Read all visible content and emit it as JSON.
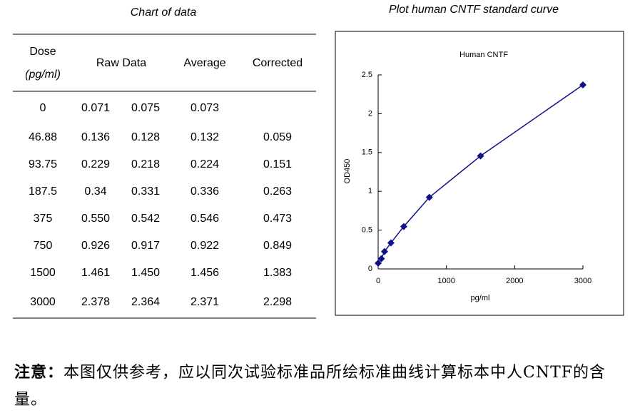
{
  "table": {
    "title": "Chart of data",
    "header": {
      "dose": "Dose",
      "dose_unit": "(pg/ml)",
      "raw": "Raw Data",
      "average": "Average",
      "corrected": "Corrected"
    },
    "rows": [
      [
        "0",
        "0.071",
        "0.075",
        "0.073",
        null
      ],
      [
        "46.88",
        "0.136",
        "0.128",
        "0.132",
        "0.059"
      ],
      [
        "93.75",
        "0.229",
        "0.218",
        "0.224",
        "0.151"
      ],
      [
        "187.5",
        "0.34",
        "0.331",
        "0.336",
        "0.263"
      ],
      [
        "375",
        "0.550",
        "0.542",
        "0.546",
        "0.473"
      ],
      [
        "750",
        "0.926",
        "0.917",
        "0.922",
        "0.849"
      ],
      [
        "1500",
        "1.461",
        "1.450",
        "1.456",
        "1.383"
      ],
      [
        "3000",
        "2.378",
        "2.364",
        "2.371",
        "2.298"
      ]
    ]
  },
  "chart_heading": "Plot human CNTF standard curve",
  "chart_data": {
    "type": "line",
    "title": "Human CNTF",
    "x_label": "pg/ml",
    "y_label": "OD450",
    "x": [
      0,
      46.88,
      93.75,
      187.5,
      375,
      750,
      1500,
      3000
    ],
    "series": [
      {
        "name": "Average",
        "color": "#10108a",
        "values": [
          0.073,
          0.132,
          0.224,
          0.336,
          0.546,
          0.922,
          1.456,
          2.371
        ]
      }
    ],
    "xlim": [
      0,
      3000
    ],
    "xticks": [
      0,
      1000,
      2000,
      3000
    ],
    "ylim": [
      0,
      2.5
    ],
    "yticks": [
      0,
      0.5,
      1,
      1.5,
      2,
      2.5
    ]
  },
  "note": {
    "label": "注意：",
    "text": "本图仅供参考，应以同次试验标准品所绘标准曲线计算标本中人CNTF的含量。"
  }
}
